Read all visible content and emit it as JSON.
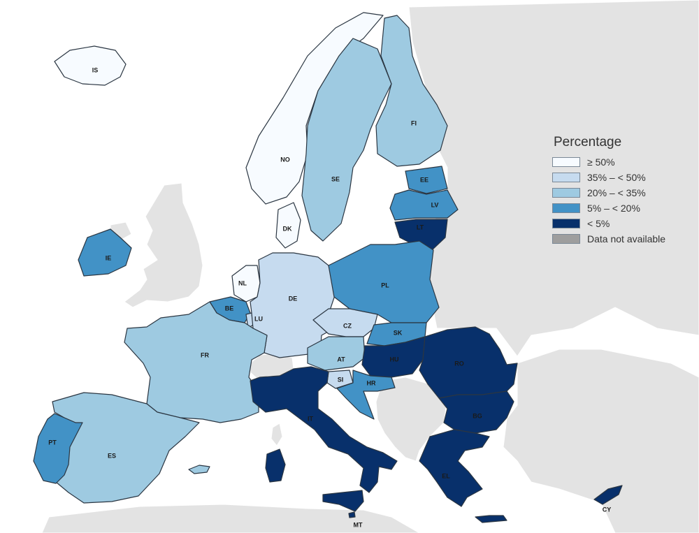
{
  "legend": {
    "title": "Percentage",
    "items": [
      {
        "label": "≥ 50%",
        "color": "#f7fbff"
      },
      {
        "label": "35% – < 50%",
        "color": "#c6dbef"
      },
      {
        "label": "20% – < 35%",
        "color": "#9ecae1"
      },
      {
        "label": "5% – < 20%",
        "color": "#4292c6"
      },
      {
        "label": "< 5%",
        "color": "#08306b"
      },
      {
        "label": "Data not available",
        "color": "#9e9e9e"
      }
    ]
  },
  "colors": {
    "background_land": "#e3e3e3",
    "sea": "#ffffff",
    "border": "#2b3642"
  },
  "countries": [
    {
      "code": "IS",
      "class": 0
    },
    {
      "code": "NO",
      "class": 0
    },
    {
      "code": "SE",
      "class": 2
    },
    {
      "code": "FI",
      "class": 2
    },
    {
      "code": "EE",
      "class": 3
    },
    {
      "code": "LV",
      "class": 3
    },
    {
      "code": "LT",
      "class": 4
    },
    {
      "code": "DK",
      "class": 0
    },
    {
      "code": "IE",
      "class": 3
    },
    {
      "code": "NL",
      "class": 0
    },
    {
      "code": "BE",
      "class": 3
    },
    {
      "code": "LU",
      "class": 1
    },
    {
      "code": "DE",
      "class": 1
    },
    {
      "code": "PL",
      "class": 3
    },
    {
      "code": "CZ",
      "class": 1
    },
    {
      "code": "SK",
      "class": 3
    },
    {
      "code": "AT",
      "class": 2
    },
    {
      "code": "HU",
      "class": 4
    },
    {
      "code": "RO",
      "class": 4
    },
    {
      "code": "SI",
      "class": 1
    },
    {
      "code": "HR",
      "class": 3
    },
    {
      "code": "FR",
      "class": 2
    },
    {
      "code": "IT",
      "class": 4
    },
    {
      "code": "BG",
      "class": 4
    },
    {
      "code": "EL",
      "class": 4
    },
    {
      "code": "ES",
      "class": 2
    },
    {
      "code": "PT",
      "class": 3
    },
    {
      "code": "MT",
      "class": 4
    },
    {
      "code": "CY",
      "class": 4
    }
  ]
}
